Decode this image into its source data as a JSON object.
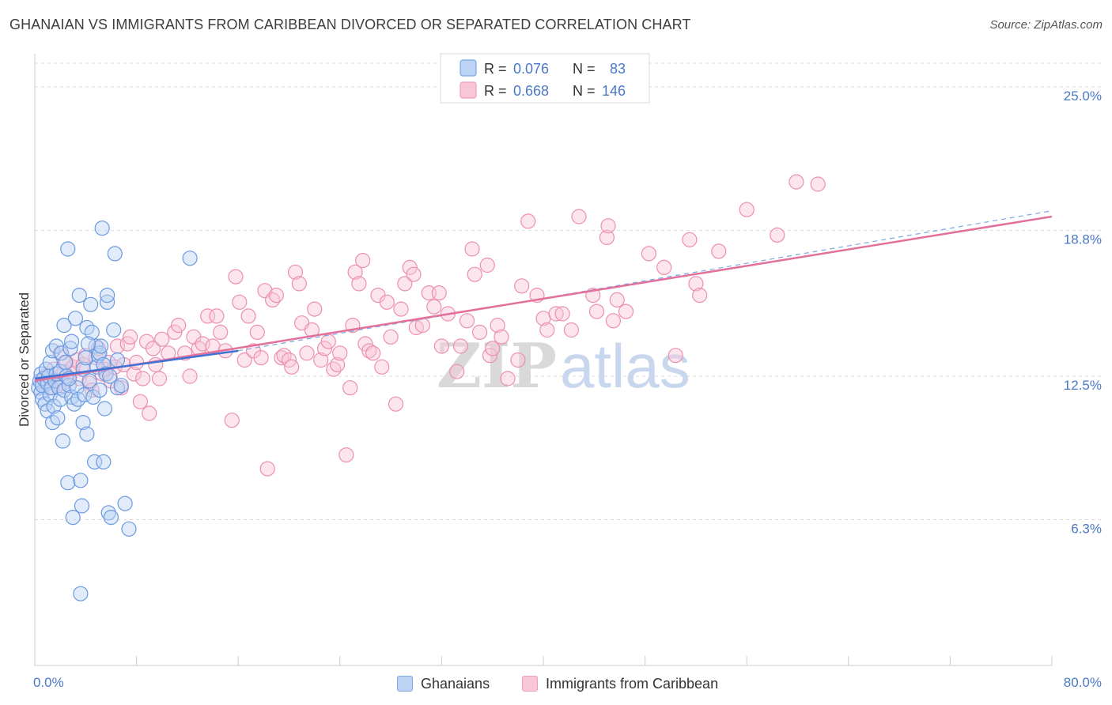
{
  "title": "GHANAIAN VS IMMIGRANTS FROM CARIBBEAN DIVORCED OR SEPARATED CORRELATION CHART",
  "source": "Source: ZipAtlas.com",
  "watermark": {
    "zip": "ZIP",
    "atlas": "atlas"
  },
  "legend_top": {
    "rows": [
      {
        "r_label": "R =",
        "r_value": "0.076",
        "n_label": "N =",
        "n_value": "83",
        "color": "#7aa7e6"
      },
      {
        "r_label": "R =",
        "r_value": "0.668",
        "n_label": "N =",
        "n_value": "146",
        "color": "#f29bb8"
      }
    ]
  },
  "legend_bottom": [
    {
      "label": "Ghanaians",
      "color": "#7aa7e6"
    },
    {
      "label": "Immigrants from Caribbean",
      "color": "#f29bb8"
    }
  ],
  "chart_data": {
    "type": "scatter",
    "title": "GHANAIAN VS IMMIGRANTS FROM CARIBBEAN DIVORCED OR SEPARATED CORRELATION CHART",
    "xlabel": "",
    "ylabel": "Divorced or Separated",
    "xlim": [
      0,
      80
    ],
    "ylim": [
      0,
      26.3
    ],
    "x_tick_labels": [
      "0.0%",
      "80.0%"
    ],
    "y_ticks": [
      6.3,
      12.5,
      18.8,
      25.0
    ],
    "y_tick_labels": [
      "6.3%",
      "12.5%",
      "18.8%",
      "25.0%"
    ],
    "grid": true,
    "series": [
      {
        "name": "Ghanaians",
        "color": "#7aa7e6",
        "trend": {
          "x": [
            0,
            16
          ],
          "y": [
            12.4,
            13.6
          ]
        },
        "points": [
          [
            0.3,
            12.0
          ],
          [
            0.4,
            12.3
          ],
          [
            0.5,
            11.8
          ],
          [
            0.5,
            12.6
          ],
          [
            0.6,
            11.5
          ],
          [
            0.6,
            12.1
          ],
          [
            0.7,
            12.4
          ],
          [
            0.8,
            11.3
          ],
          [
            0.9,
            12.8
          ],
          [
            1.0,
            12.2
          ],
          [
            1.0,
            11.0
          ],
          [
            1.1,
            12.5
          ],
          [
            1.2,
            13.1
          ],
          [
            1.2,
            11.7
          ],
          [
            1.3,
            12.0
          ],
          [
            1.4,
            13.6
          ],
          [
            1.4,
            10.5
          ],
          [
            1.5,
            11.2
          ],
          [
            1.6,
            12.3
          ],
          [
            1.7,
            12.6
          ],
          [
            1.7,
            13.8
          ],
          [
            1.8,
            10.7
          ],
          [
            1.9,
            12.0
          ],
          [
            2.0,
            11.5
          ],
          [
            2.0,
            12.7
          ],
          [
            2.1,
            13.5
          ],
          [
            2.2,
            9.7
          ],
          [
            2.3,
            11.9
          ],
          [
            2.3,
            14.7
          ],
          [
            2.4,
            13.1
          ],
          [
            2.5,
            12.5
          ],
          [
            2.6,
            7.9
          ],
          [
            2.6,
            18.0
          ],
          [
            2.7,
            12.1
          ],
          [
            2.8,
            13.7
          ],
          [
            2.9,
            11.6
          ],
          [
            2.9,
            14.0
          ],
          [
            3.0,
            6.4
          ],
          [
            3.1,
            11.3
          ],
          [
            3.2,
            15.0
          ],
          [
            3.3,
            12.0
          ],
          [
            3.4,
            11.5
          ],
          [
            3.5,
            16.0
          ],
          [
            3.6,
            8.0
          ],
          [
            3.6,
            3.1
          ],
          [
            3.7,
            6.9
          ],
          [
            3.8,
            12.8
          ],
          [
            3.8,
            10.5
          ],
          [
            3.9,
            11.7
          ],
          [
            4.0,
            13.3
          ],
          [
            4.1,
            10.0
          ],
          [
            4.1,
            14.6
          ],
          [
            4.3,
            12.3
          ],
          [
            4.4,
            15.6
          ],
          [
            4.5,
            14.4
          ],
          [
            4.6,
            11.6
          ],
          [
            4.7,
            8.8
          ],
          [
            4.8,
            13.8
          ],
          [
            4.9,
            12.9
          ],
          [
            5.0,
            13.4
          ],
          [
            5.1,
            11.9
          ],
          [
            5.1,
            13.5
          ],
          [
            5.2,
            13.8
          ],
          [
            5.3,
            18.9
          ],
          [
            5.4,
            13.0
          ],
          [
            5.4,
            8.8
          ],
          [
            5.5,
            11.1
          ],
          [
            5.6,
            12.6
          ],
          [
            5.7,
            15.7
          ],
          [
            5.7,
            16.0
          ],
          [
            5.8,
            6.6
          ],
          [
            5.9,
            12.5
          ],
          [
            6.0,
            6.4
          ],
          [
            6.2,
            14.5
          ],
          [
            6.3,
            17.8
          ],
          [
            6.5,
            12.0
          ],
          [
            6.5,
            13.2
          ],
          [
            6.8,
            12.1
          ],
          [
            7.1,
            7.0
          ],
          [
            7.4,
            5.9
          ],
          [
            12.2,
            17.6
          ],
          [
            4.2,
            13.9
          ],
          [
            2.7,
            12.4
          ]
        ]
      },
      {
        "name": "Immigrants from Caribbean",
        "color": "#f29bb8",
        "trend": {
          "x": [
            0,
            80
          ],
          "y": [
            12.3,
            19.4
          ]
        },
        "points": [
          [
            0.5,
            12.2
          ],
          [
            0.8,
            12.5
          ],
          [
            1.0,
            12.0
          ],
          [
            1.3,
            12.4
          ],
          [
            1.5,
            12.8
          ],
          [
            1.8,
            12.1
          ],
          [
            2.0,
            13.5
          ],
          [
            2.3,
            12.7
          ],
          [
            2.5,
            13.1
          ],
          [
            2.8,
            12.6
          ],
          [
            3.0,
            12.9
          ],
          [
            3.3,
            13.2
          ],
          [
            3.5,
            12.4
          ],
          [
            3.8,
            13.0
          ],
          [
            4.0,
            13.4
          ],
          [
            4.3,
            12.2
          ],
          [
            4.5,
            11.9
          ],
          [
            4.8,
            13.3
          ],
          [
            5.0,
            13.7
          ],
          [
            5.3,
            12.6
          ],
          [
            5.5,
            12.8
          ],
          [
            5.8,
            13.1
          ],
          [
            6.0,
            12.3
          ],
          [
            6.3,
            12.9
          ],
          [
            6.5,
            13.8
          ],
          [
            6.8,
            12.0
          ],
          [
            7.0,
            13.0
          ],
          [
            7.3,
            13.9
          ],
          [
            7.5,
            14.2
          ],
          [
            7.8,
            12.6
          ],
          [
            8.0,
            13.1
          ],
          [
            8.3,
            11.4
          ],
          [
            8.5,
            12.4
          ],
          [
            8.8,
            14.0
          ],
          [
            9.0,
            10.9
          ],
          [
            9.3,
            13.7
          ],
          [
            9.5,
            13.0
          ],
          [
            9.8,
            12.4
          ],
          [
            10.0,
            14.1
          ],
          [
            10.5,
            13.5
          ],
          [
            11.0,
            14.4
          ],
          [
            11.3,
            14.7
          ],
          [
            11.8,
            13.5
          ],
          [
            12.2,
            12.5
          ],
          [
            12.5,
            14.2
          ],
          [
            12.9,
            13.7
          ],
          [
            13.2,
            13.9
          ],
          [
            13.6,
            15.1
          ],
          [
            14.0,
            13.8
          ],
          [
            14.3,
            15.1
          ],
          [
            14.6,
            14.4
          ],
          [
            15.0,
            13.6
          ],
          [
            15.5,
            10.6
          ],
          [
            15.8,
            16.8
          ],
          [
            16.1,
            15.7
          ],
          [
            16.5,
            13.2
          ],
          [
            16.8,
            15.1
          ],
          [
            17.2,
            13.6
          ],
          [
            17.5,
            14.4
          ],
          [
            17.8,
            13.3
          ],
          [
            18.1,
            16.2
          ],
          [
            18.3,
            8.5
          ],
          [
            18.7,
            15.8
          ],
          [
            19.0,
            16.0
          ],
          [
            19.4,
            13.3
          ],
          [
            19.6,
            13.4
          ],
          [
            20.0,
            13.2
          ],
          [
            20.2,
            12.9
          ],
          [
            20.5,
            17.0
          ],
          [
            20.8,
            16.5
          ],
          [
            21.0,
            14.8
          ],
          [
            21.4,
            13.5
          ],
          [
            21.8,
            14.5
          ],
          [
            22.0,
            15.4
          ],
          [
            22.5,
            13.2
          ],
          [
            22.8,
            13.7
          ],
          [
            23.1,
            14.0
          ],
          [
            23.5,
            12.8
          ],
          [
            23.8,
            13.0
          ],
          [
            24.0,
            13.5
          ],
          [
            24.5,
            9.1
          ],
          [
            24.8,
            12.0
          ],
          [
            25.0,
            14.7
          ],
          [
            25.2,
            17.0
          ],
          [
            25.5,
            16.5
          ],
          [
            25.8,
            17.5
          ],
          [
            26.0,
            13.9
          ],
          [
            26.3,
            13.6
          ],
          [
            26.6,
            13.5
          ],
          [
            27.0,
            16.0
          ],
          [
            27.3,
            12.9
          ],
          [
            27.7,
            15.7
          ],
          [
            28.0,
            14.2
          ],
          [
            28.4,
            11.3
          ],
          [
            28.8,
            15.4
          ],
          [
            29.1,
            16.5
          ],
          [
            29.5,
            17.2
          ],
          [
            29.8,
            16.9
          ],
          [
            30.0,
            14.6
          ],
          [
            30.5,
            14.7
          ],
          [
            31.0,
            16.1
          ],
          [
            31.4,
            15.5
          ],
          [
            31.8,
            16.1
          ],
          [
            32.0,
            13.8
          ],
          [
            32.5,
            15.2
          ],
          [
            33.2,
            12.7
          ],
          [
            33.5,
            13.8
          ],
          [
            34.0,
            14.9
          ],
          [
            34.4,
            18.0
          ],
          [
            34.6,
            16.9
          ],
          [
            35.0,
            14.4
          ],
          [
            35.6,
            17.3
          ],
          [
            35.8,
            13.4
          ],
          [
            36.0,
            13.7
          ],
          [
            36.4,
            14.7
          ],
          [
            36.7,
            14.2
          ],
          [
            37.2,
            12.4
          ],
          [
            38.0,
            13.2
          ],
          [
            38.3,
            16.4
          ],
          [
            38.8,
            19.2
          ],
          [
            39.5,
            16.0
          ],
          [
            40.0,
            15.0
          ],
          [
            40.3,
            14.5
          ],
          [
            41.0,
            15.2
          ],
          [
            41.5,
            15.2
          ],
          [
            42.2,
            14.5
          ],
          [
            42.8,
            19.4
          ],
          [
            43.9,
            16.0
          ],
          [
            44.2,
            15.3
          ],
          [
            45.0,
            18.5
          ],
          [
            45.1,
            19.0
          ],
          [
            45.5,
            14.9
          ],
          [
            45.8,
            15.8
          ],
          [
            46.5,
            15.3
          ],
          [
            48.3,
            17.8
          ],
          [
            49.5,
            17.2
          ],
          [
            50.4,
            13.4
          ],
          [
            51.5,
            18.4
          ],
          [
            52.0,
            16.5
          ],
          [
            52.3,
            16.0
          ],
          [
            53.8,
            17.9
          ],
          [
            56.0,
            19.7
          ],
          [
            58.4,
            18.6
          ],
          [
            59.9,
            20.9
          ],
          [
            61.6,
            20.8
          ],
          [
            2.2,
            12.2
          ]
        ]
      }
    ]
  }
}
